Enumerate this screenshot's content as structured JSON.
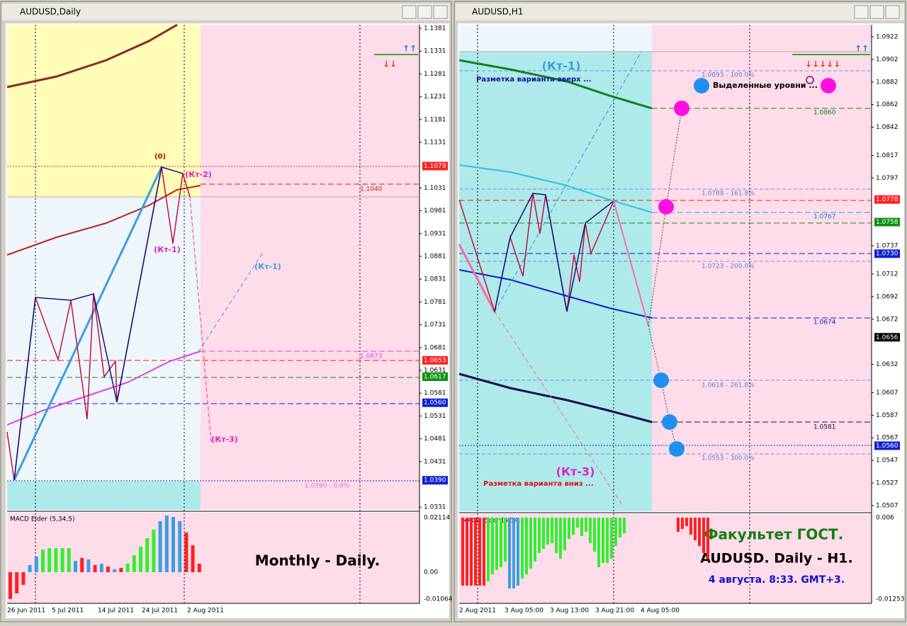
{
  "left": {
    "title": "AUDUSD,Daily",
    "price_labels": [
      "1.1381",
      "1.1331",
      "1.1281",
      "1.1231",
      "1.1181",
      "1.1131",
      "1.1031",
      "1.0981",
      "1.0931",
      "1.0881",
      "1.0831",
      "1.0781",
      "1.0731",
      "1.0681",
      "1.0631",
      "1.0581",
      "1.0531",
      "1.0481",
      "1.0431",
      "1.0331"
    ],
    "price_markers": [
      {
        "label": "1.1079",
        "color": "#ff2020"
      },
      {
        "label": "1.0653",
        "color": "#ff2020"
      },
      {
        "label": "1.0617",
        "color": "#109010"
      },
      {
        "label": "1.0560",
        "color": "#1020d0"
      },
      {
        "label": "1.0390",
        "color": "#1020d0"
      }
    ],
    "annotations": {
      "zero": "(0)",
      "kt2": "(Кт-2)",
      "kt1": "(Кт-1)",
      "kt1_up": "(Кт-1)",
      "kt3": "(Кт-3)",
      "lvl1": "1.1040",
      "lvl2": "1.0673",
      "lvl3": "1.0390 - 0.0%"
    },
    "indicator": "MACD Elder (5,34,5)",
    "indicator_scale": [
      "0.02114",
      "0.00",
      "-0.01064"
    ],
    "dates": [
      "26 Jun 2011",
      "5 Jul 2011",
      "14 Jul 2011",
      "24 Jul 2011",
      "2 Aug 2011"
    ],
    "caption": "Monthly - Daily."
  },
  "right": {
    "title": "AUDUSD,H1",
    "price_labels": [
      "1.0922",
      "1.0902",
      "1.0882",
      "1.0862",
      "1.0842",
      "1.0817",
      "1.0797",
      "1.0737",
      "1.0712",
      "1.0692",
      "1.0672",
      "1.0632",
      "1.0607",
      "1.0587",
      "1.0567",
      "1.0547",
      "1.0527",
      "1.0507"
    ],
    "price_markers": [
      {
        "label": "1.0778",
        "color": "#ff2020"
      },
      {
        "label": "1.0758",
        "color": "#109010"
      },
      {
        "label": "1.0730",
        "color": "#1020d0"
      },
      {
        "label": "1.0656",
        "color": "#000000"
      },
      {
        "label": "1.0560",
        "color": "#1020d0"
      }
    ],
    "annotations": {
      "kt1": "(Кт-1)",
      "up": "Разметка варианта вверх ...",
      "levels": "Выделенные уровни ...",
      "f100": "1.0893 - 100.0%",
      "l1": "1.0860",
      "f161": "1.0788 - 161.8%",
      "l2": "1.0767",
      "f200": "1.0723 - 200.0%",
      "l3": "1.0674",
      "f261": "1.0618 - 261.8%",
      "l4": "1.0581",
      "f300": "1.0553 - 300.0%",
      "kt3": "(Кт-3)",
      "down": "Разметка варианта вниз ..."
    },
    "indicator": "MACD Elder (5,34,5)",
    "indicator_scale": [
      "0.006",
      "-0.01253"
    ],
    "dates": [
      "2 Aug 2011",
      "3 Aug 05:00",
      "3 Aug 13:00",
      "3 Aug 21:00",
      "4 Aug 05:00"
    ],
    "captions": [
      "Факультет ГОСТ.",
      "AUDUSD. Daily - H1.",
      "4 августа. 8:33. GMT+3."
    ]
  }
}
